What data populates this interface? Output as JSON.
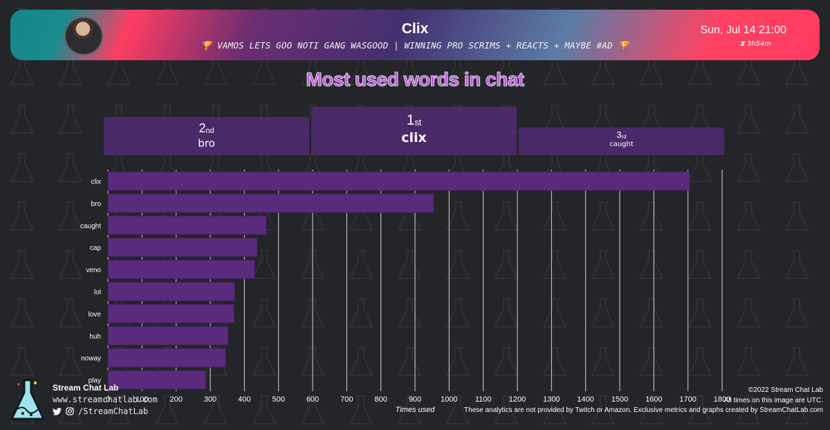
{
  "header": {
    "streamer": "Clix",
    "stream_title": "🏆 VAMOS LETS GOO NOTI GANG WASGOOD | WINNING PRO SCRIMS + REACTS + MAYBE #AD 🏆",
    "date": "Sun, Jul 14 21:00",
    "duration": "3h54m"
  },
  "podium": {
    "first": {
      "rank": "1",
      "suffix": "st",
      "word": "clix"
    },
    "second": {
      "rank": "2",
      "suffix": "nd",
      "word": "bro"
    },
    "third": {
      "rank": "3",
      "suffix": "rd",
      "word": "caught"
    }
  },
  "chart_data": {
    "type": "bar",
    "orientation": "horizontal",
    "title": "Most used words in chat",
    "xlabel": "Times used",
    "ylabel": "",
    "categories": [
      "clix",
      "bro",
      "caught",
      "cap",
      "veno",
      "lol",
      "love",
      "huh",
      "noway",
      "play"
    ],
    "values": [
      1705,
      955,
      465,
      438,
      430,
      372,
      370,
      353,
      346,
      287
    ],
    "xlim": [
      0,
      1800
    ],
    "xticks": [
      0,
      100,
      200,
      300,
      400,
      500,
      600,
      700,
      800,
      900,
      1000,
      1100,
      1200,
      1300,
      1400,
      1500,
      1600,
      1700,
      1800
    ],
    "grid": true,
    "bar_color": "#5a2a7c"
  },
  "footer": {
    "brand": "Stream Chat Lab",
    "website": "www.streamchatlab.com",
    "handle": "/StreamChatLab",
    "copyright": "©2022 Stream Chat Lab",
    "timezone_note": "All times on this image are UTC.",
    "disclaimer": "These analytics are not provided by Twitch or Amazon. Exclusive metrics and graphs created by StreamChatLab.com"
  },
  "colors": {
    "title": "#b95fd6",
    "podium": "#4a2968",
    "background": "#232528"
  }
}
